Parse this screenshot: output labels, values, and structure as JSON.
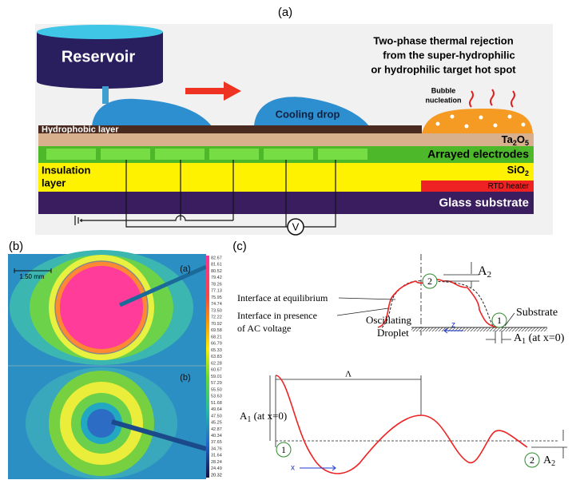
{
  "panel_a": {
    "label": "(a)",
    "reservoir": "Reservoir",
    "headline": [
      "Two-phase thermal rejection",
      "from the super-hydrophilic",
      "or hydrophilic target hot spot"
    ],
    "bubble": [
      "Bubble",
      "nucleation"
    ],
    "cooling_drop": "Cooling drop",
    "hydrophobic": "Hydrophobic layer",
    "ta2o5": [
      "Ta",
      "2",
      "O",
      "5"
    ],
    "electrodes": "Arrayed electrodes",
    "insulation": [
      "Insulation",
      "layer"
    ],
    "sio2": [
      "SiO",
      "2"
    ],
    "rtd": "RTD heater",
    "glass": "Glass substrate",
    "voltage": "V"
  },
  "panel_b": {
    "label": "(b)",
    "scale": "1.50 mm",
    "top": "(a)",
    "bottom": "(b)",
    "colorbar": [
      "82.67",
      "81.61",
      "80.52",
      "79.42",
      "78.26",
      "77.13",
      "75.95",
      "74.74",
      "73.50",
      "72.22",
      "70.92",
      "69.58",
      "68.21",
      "66.79",
      "65.33",
      "63.83",
      "62.28",
      "60.67",
      "59.01",
      "57.29",
      "55.50",
      "53.63",
      "51.68",
      "49.64",
      "47.50",
      "45.25",
      "42.87",
      "40.34",
      "37.65",
      "34.76",
      "31.64",
      "28.24",
      "24.49",
      "20.32"
    ]
  },
  "panel_c": {
    "label": "(c)",
    "a2_top": [
      "A",
      "2"
    ],
    "eq": "Interface at equilibrium",
    "ac": [
      "Interface in presence",
      "of AC voltage"
    ],
    "droplet": [
      "Oscillating",
      "Droplet"
    ],
    "substrate": "Substrate",
    "n1": "1",
    "n2": "2",
    "z": "z",
    "a1_top": [
      "A",
      "1",
      " (at x=0)"
    ],
    "lambda": "Λ",
    "a1_bot": [
      "A",
      "1",
      " (at x=0)"
    ],
    "m1": "1",
    "m2": "2",
    "x": "x",
    "a2_bot": [
      "A",
      "2"
    ]
  }
}
